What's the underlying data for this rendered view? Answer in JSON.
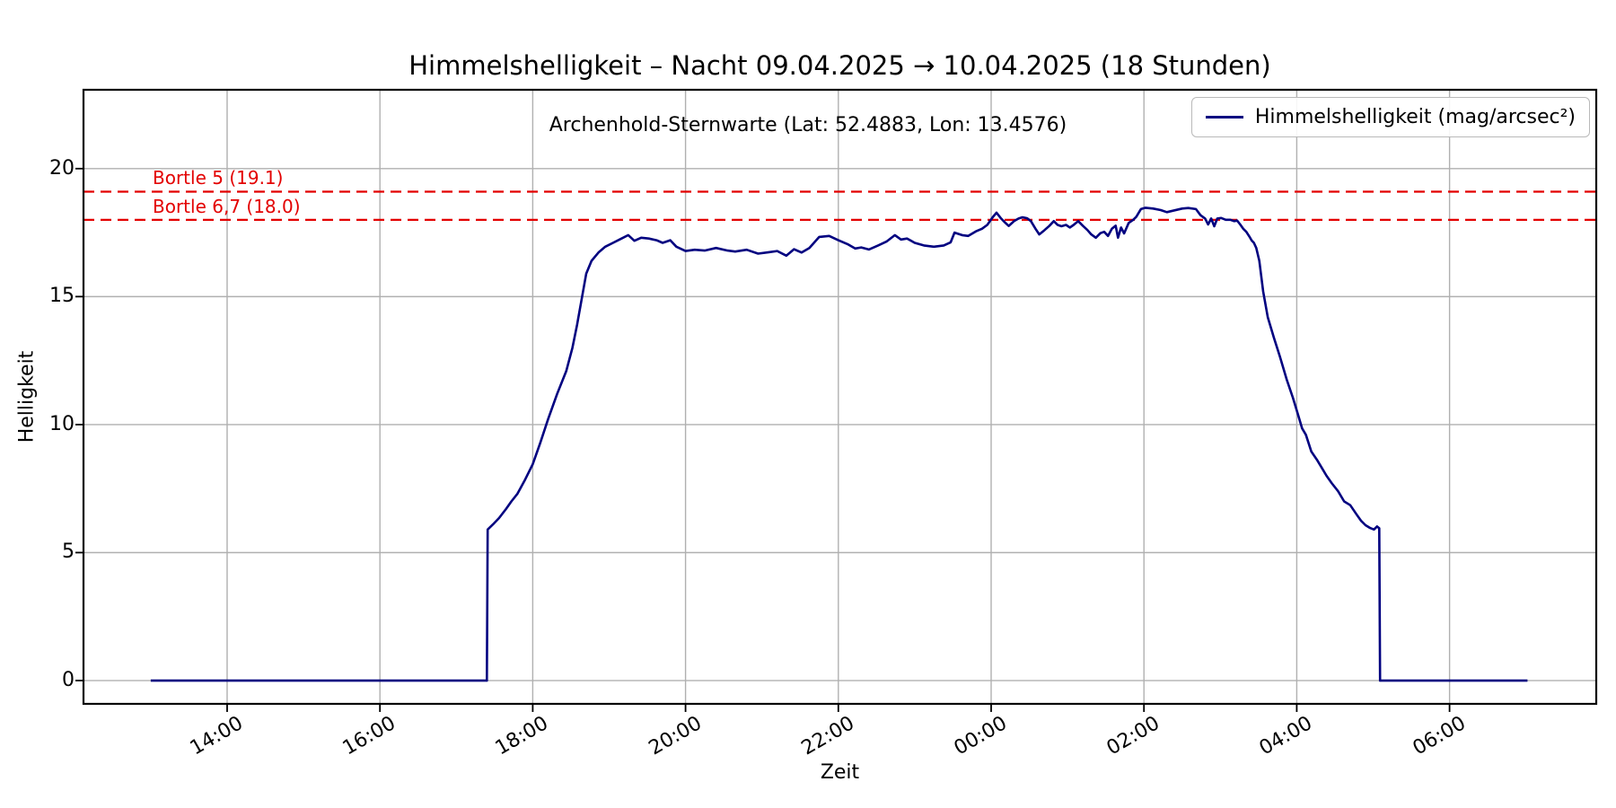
{
  "title": "Himmelshelligkeit – Nacht 09.04.2025 → 10.04.2025 (18 Stunden)",
  "subtitle": "Archenhold-Sternwarte (Lat: 52.4883, Lon: 13.4576)",
  "legend": {
    "label": "Himmelshelligkeit (mag/arcsec²)"
  },
  "colors": {
    "line": "#000080",
    "reference": "#e30000",
    "grid": "#b0b0b0",
    "spine": "#000000",
    "background": "#ffffff"
  },
  "chart_data": {
    "type": "line",
    "title": "Himmelshelligkeit – Nacht 09.04.2025 → 10.04.2025 (18 Stunden)",
    "annotation": "Archenhold-Sternwarte (Lat: 52.4883, Lon: 13.4576)",
    "xlabel": "Zeit",
    "ylabel": "Helligkeit",
    "x_unit": "hours after 13:00 (09.04.2025)",
    "grid": true,
    "legend_position": "upper right",
    "xlim_hours": [
      -0.88,
      18.92
    ],
    "ylim": [
      -0.91,
      23.08
    ],
    "xticks": [
      {
        "t": 1,
        "label": "14:00"
      },
      {
        "t": 3,
        "label": "16:00"
      },
      {
        "t": 5,
        "label": "18:00"
      },
      {
        "t": 7,
        "label": "20:00"
      },
      {
        "t": 9,
        "label": "22:00"
      },
      {
        "t": 11,
        "label": "00:00"
      },
      {
        "t": 13,
        "label": "02:00"
      },
      {
        "t": 15,
        "label": "04:00"
      },
      {
        "t": 17,
        "label": "06:00"
      }
    ],
    "yticks": [
      {
        "v": 0,
        "label": "0"
      },
      {
        "v": 5,
        "label": "5"
      },
      {
        "v": 10,
        "label": "10"
      },
      {
        "v": 15,
        "label": "15"
      },
      {
        "v": 20,
        "label": "20"
      }
    ],
    "reference_lines": [
      {
        "label": "Bortle 5 (19.1)",
        "value": 19.1,
        "style": "dashed"
      },
      {
        "label": "Bortle 6,7 (18.0)",
        "value": 18.0,
        "style": "dashed"
      }
    ],
    "series": [
      {
        "name": "Himmelshelligkeit (mag/arcsec²)",
        "points": [
          [
            0.0,
            0.0
          ],
          [
            4.4,
            0.0
          ],
          [
            4.41,
            5.9
          ],
          [
            4.48,
            6.1
          ],
          [
            4.56,
            6.35
          ],
          [
            4.65,
            6.7
          ],
          [
            4.72,
            7.0
          ],
          [
            4.8,
            7.3
          ],
          [
            4.9,
            7.85
          ],
          [
            5.0,
            8.45
          ],
          [
            5.1,
            9.3
          ],
          [
            5.2,
            10.2
          ],
          [
            5.32,
            11.2
          ],
          [
            5.44,
            12.1
          ],
          [
            5.52,
            13.0
          ],
          [
            5.58,
            13.9
          ],
          [
            5.64,
            14.9
          ],
          [
            5.7,
            15.9
          ],
          [
            5.77,
            16.4
          ],
          [
            5.86,
            16.72
          ],
          [
            5.95,
            16.95
          ],
          [
            6.05,
            17.1
          ],
          [
            6.15,
            17.25
          ],
          [
            6.25,
            17.4
          ],
          [
            6.33,
            17.18
          ],
          [
            6.42,
            17.3
          ],
          [
            6.52,
            17.27
          ],
          [
            6.62,
            17.2
          ],
          [
            6.7,
            17.1
          ],
          [
            6.8,
            17.2
          ],
          [
            6.88,
            16.95
          ],
          [
            7.0,
            16.78
          ],
          [
            7.12,
            16.83
          ],
          [
            7.25,
            16.8
          ],
          [
            7.4,
            16.9
          ],
          [
            7.55,
            16.8
          ],
          [
            7.65,
            16.76
          ],
          [
            7.8,
            16.83
          ],
          [
            7.95,
            16.68
          ],
          [
            8.08,
            16.73
          ],
          [
            8.2,
            16.78
          ],
          [
            8.32,
            16.6
          ],
          [
            8.42,
            16.85
          ],
          [
            8.52,
            16.72
          ],
          [
            8.62,
            16.9
          ],
          [
            8.75,
            17.33
          ],
          [
            8.88,
            17.37
          ],
          [
            9.0,
            17.2
          ],
          [
            9.12,
            17.05
          ],
          [
            9.22,
            16.88
          ],
          [
            9.3,
            16.92
          ],
          [
            9.4,
            16.84
          ],
          [
            9.52,
            17.0
          ],
          [
            9.63,
            17.15
          ],
          [
            9.74,
            17.4
          ],
          [
            9.82,
            17.23
          ],
          [
            9.9,
            17.27
          ],
          [
            10.0,
            17.1
          ],
          [
            10.12,
            17.0
          ],
          [
            10.25,
            16.95
          ],
          [
            10.38,
            17.0
          ],
          [
            10.47,
            17.12
          ],
          [
            10.52,
            17.5
          ],
          [
            10.62,
            17.4
          ],
          [
            10.7,
            17.37
          ],
          [
            10.8,
            17.55
          ],
          [
            10.88,
            17.65
          ],
          [
            10.95,
            17.8
          ],
          [
            11.02,
            18.1
          ],
          [
            11.07,
            18.28
          ],
          [
            11.13,
            18.05
          ],
          [
            11.18,
            17.9
          ],
          [
            11.23,
            17.76
          ],
          [
            11.3,
            17.95
          ],
          [
            11.36,
            18.05
          ],
          [
            11.41,
            18.1
          ],
          [
            11.47,
            18.06
          ],
          [
            11.52,
            17.95
          ],
          [
            11.58,
            17.65
          ],
          [
            11.63,
            17.43
          ],
          [
            11.7,
            17.6
          ],
          [
            11.76,
            17.76
          ],
          [
            11.82,
            17.95
          ],
          [
            11.87,
            17.8
          ],
          [
            11.92,
            17.75
          ],
          [
            11.98,
            17.8
          ],
          [
            12.03,
            17.7
          ],
          [
            12.08,
            17.8
          ],
          [
            12.14,
            17.95
          ],
          [
            12.2,
            17.77
          ],
          [
            12.26,
            17.6
          ],
          [
            12.31,
            17.43
          ],
          [
            12.37,
            17.3
          ],
          [
            12.43,
            17.48
          ],
          [
            12.48,
            17.53
          ],
          [
            12.53,
            17.37
          ],
          [
            12.58,
            17.65
          ],
          [
            12.63,
            17.77
          ],
          [
            12.66,
            17.3
          ],
          [
            12.7,
            17.7
          ],
          [
            12.74,
            17.47
          ],
          [
            12.8,
            17.88
          ],
          [
            12.86,
            18.0
          ],
          [
            12.9,
            18.12
          ],
          [
            12.96,
            18.42
          ],
          [
            13.02,
            18.47
          ],
          [
            13.12,
            18.44
          ],
          [
            13.22,
            18.38
          ],
          [
            13.3,
            18.3
          ],
          [
            13.4,
            18.37
          ],
          [
            13.5,
            18.44
          ],
          [
            13.58,
            18.46
          ],
          [
            13.68,
            18.42
          ],
          [
            13.74,
            18.18
          ],
          [
            13.8,
            18.05
          ],
          [
            13.84,
            17.82
          ],
          [
            13.88,
            18.05
          ],
          [
            13.92,
            17.75
          ],
          [
            13.96,
            18.05
          ],
          [
            14.01,
            18.07
          ],
          [
            14.07,
            18.0
          ],
          [
            14.13,
            18.0
          ],
          [
            14.18,
            17.95
          ],
          [
            14.22,
            17.97
          ],
          [
            14.26,
            17.82
          ],
          [
            14.3,
            17.65
          ],
          [
            14.34,
            17.53
          ],
          [
            14.38,
            17.35
          ],
          [
            14.41,
            17.19
          ],
          [
            14.44,
            17.1
          ],
          [
            14.47,
            16.9
          ],
          [
            14.51,
            16.4
          ],
          [
            14.56,
            15.2
          ],
          [
            14.62,
            14.2
          ],
          [
            14.7,
            13.4
          ],
          [
            14.78,
            12.65
          ],
          [
            14.87,
            11.75
          ],
          [
            14.95,
            11.05
          ],
          [
            15.01,
            10.45
          ],
          [
            15.07,
            9.85
          ],
          [
            15.12,
            9.6
          ],
          [
            15.19,
            8.95
          ],
          [
            15.27,
            8.6
          ],
          [
            15.33,
            8.3
          ],
          [
            15.39,
            8.0
          ],
          [
            15.46,
            7.7
          ],
          [
            15.54,
            7.4
          ],
          [
            15.62,
            7.0
          ],
          [
            15.7,
            6.85
          ],
          [
            15.78,
            6.5
          ],
          [
            15.84,
            6.25
          ],
          [
            15.9,
            6.07
          ],
          [
            15.96,
            5.96
          ],
          [
            16.01,
            5.9
          ],
          [
            16.05,
            6.02
          ],
          [
            16.08,
            5.95
          ],
          [
            16.09,
            0.0
          ],
          [
            18.02,
            0.0
          ]
        ]
      }
    ]
  }
}
